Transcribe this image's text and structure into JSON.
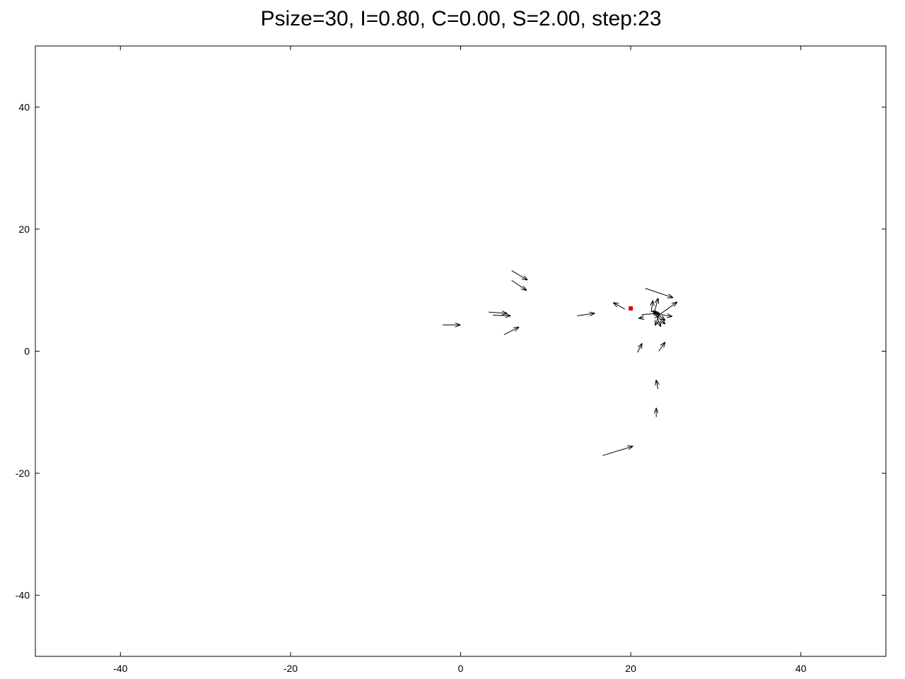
{
  "chart_data": {
    "type": "scatter",
    "subtype": "vector-field",
    "title": "Psize=30, I=0.80, C=0.00, S=2.00, step:23",
    "xlabel": "",
    "ylabel": "",
    "xlim": [
      -50,
      50
    ],
    "ylim": [
      -50,
      50
    ],
    "grid": false,
    "xticks": [
      -40,
      -20,
      0,
      20,
      40
    ],
    "yticks": [
      40,
      20,
      0,
      -20,
      -40
    ],
    "xtick_labels": [
      "-40",
      "-20",
      "0",
      "20",
      "40"
    ],
    "ytick_labels": [
      "40",
      "20",
      "0",
      "-20",
      "-40"
    ],
    "colors": {
      "arrow": "#000000",
      "target": "#e00000",
      "frame": "#000000"
    },
    "target": {
      "x": 20.0,
      "y": 7.0
    },
    "arrows": [
      {
        "x1": 6.0,
        "y1": 13.2,
        "x2": 7.8,
        "y2": 11.7
      },
      {
        "x1": 6.0,
        "y1": 11.6,
        "x2": 7.7,
        "y2": 10.0
      },
      {
        "x1": 3.3,
        "y1": 6.4,
        "x2": 5.4,
        "y2": 6.2
      },
      {
        "x1": 3.8,
        "y1": 5.9,
        "x2": 5.8,
        "y2": 5.8
      },
      {
        "x1": -2.1,
        "y1": 4.3,
        "x2": -0.1,
        "y2": 4.3
      },
      {
        "x1": 5.1,
        "y1": 2.7,
        "x2": 6.8,
        "y2": 3.9
      },
      {
        "x1": 13.7,
        "y1": 5.8,
        "x2": 15.7,
        "y2": 6.2
      },
      {
        "x1": 19.3,
        "y1": 6.9,
        "x2": 18.0,
        "y2": 7.9
      },
      {
        "x1": 21.7,
        "y1": 10.3,
        "x2": 24.9,
        "y2": 8.8
      },
      {
        "x1": 22.8,
        "y1": 5.4,
        "x2": 25.4,
        "y2": 8.0
      },
      {
        "x1": 22.7,
        "y1": 5.9,
        "x2": 23.2,
        "y2": 8.6
      },
      {
        "x1": 22.4,
        "y1": 6.4,
        "x2": 22.6,
        "y2": 8.2
      },
      {
        "x1": 21.3,
        "y1": 6.0,
        "x2": 23.3,
        "y2": 6.2
      },
      {
        "x1": 23.1,
        "y1": 6.1,
        "x2": 24.8,
        "y2": 5.7
      },
      {
        "x1": 22.6,
        "y1": 6.6,
        "x2": 24.0,
        "y2": 5.1
      },
      {
        "x1": 22.4,
        "y1": 6.7,
        "x2": 24.0,
        "y2": 4.5
      },
      {
        "x1": 23.0,
        "y1": 6.0,
        "x2": 23.5,
        "y2": 4.1
      },
      {
        "x1": 23.4,
        "y1": 6.3,
        "x2": 22.9,
        "y2": 4.3
      },
      {
        "x1": 23.8,
        "y1": 5.3,
        "x2": 22.7,
        "y2": 6.6
      },
      {
        "x1": 21.5,
        "y1": 5.5,
        "x2": 21.0,
        "y2": 5.4
      },
      {
        "x1": 20.8,
        "y1": -0.2,
        "x2": 21.3,
        "y2": 1.2
      },
      {
        "x1": 23.3,
        "y1": 0.0,
        "x2": 24.0,
        "y2": 1.4
      },
      {
        "x1": 23.2,
        "y1": -6.2,
        "x2": 23.0,
        "y2": -4.8
      },
      {
        "x1": 23.0,
        "y1": -10.8,
        "x2": 23.0,
        "y2": -9.4
      },
      {
        "x1": 16.7,
        "y1": -17.1,
        "x2": 20.2,
        "y2": -15.6
      }
    ]
  }
}
